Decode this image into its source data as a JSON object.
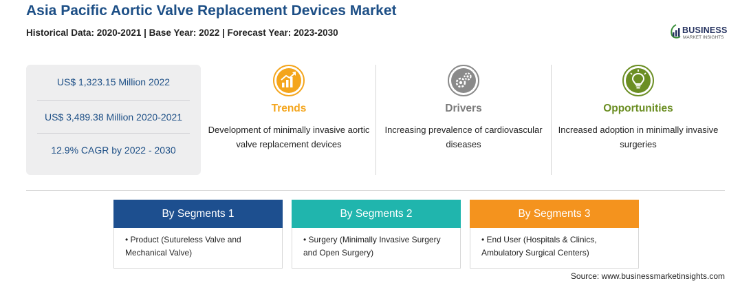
{
  "header": {
    "title": "Asia Pacific Aortic Valve Replacement Devices Market",
    "subtitle": "Historical Data: 2020-2021 | Base Year: 2022 | Forecast Year: 2023-2030"
  },
  "logo": {
    "name": "BUSINESS",
    "tagline": "MARKET INSIGHTS"
  },
  "stats": [
    "US$ 1,323.15 Million 2022",
    "US$ 3,489.38 Million 2020-2021",
    "12.9% CAGR by 2022 - 2030"
  ],
  "columns": [
    {
      "title": "Trends",
      "icon": "trend-chart-icon",
      "color": "#f4a51c",
      "text": "Development of minimally invasive aortic valve replacement devices"
    },
    {
      "title": "Drivers",
      "icon": "gears-icon",
      "color": "#8a8a8a",
      "text": "Increasing prevalence of cardiovascular diseases"
    },
    {
      "title": "Opportunities",
      "icon": "lightbulb-icon",
      "color": "#6b8e23",
      "text": "Increased adoption in minimally invasive surgeries"
    }
  ],
  "segments": [
    {
      "title": "By Segments 1",
      "color": "#1d4f8f",
      "item": "• Product (Sutureless Valve and Mechanical Valve)"
    },
    {
      "title": "By Segments 2",
      "color": "#20b5ad",
      "item": "• Surgery (Minimally Invasive Surgery and Open Surgery)"
    },
    {
      "title": "By Segments 3",
      "color": "#f4931e",
      "item": "• End User (Hospitals & Clinics, Ambulatory Surgical Centers)"
    }
  ],
  "source": "Source: www.businessmarketinsights.com"
}
